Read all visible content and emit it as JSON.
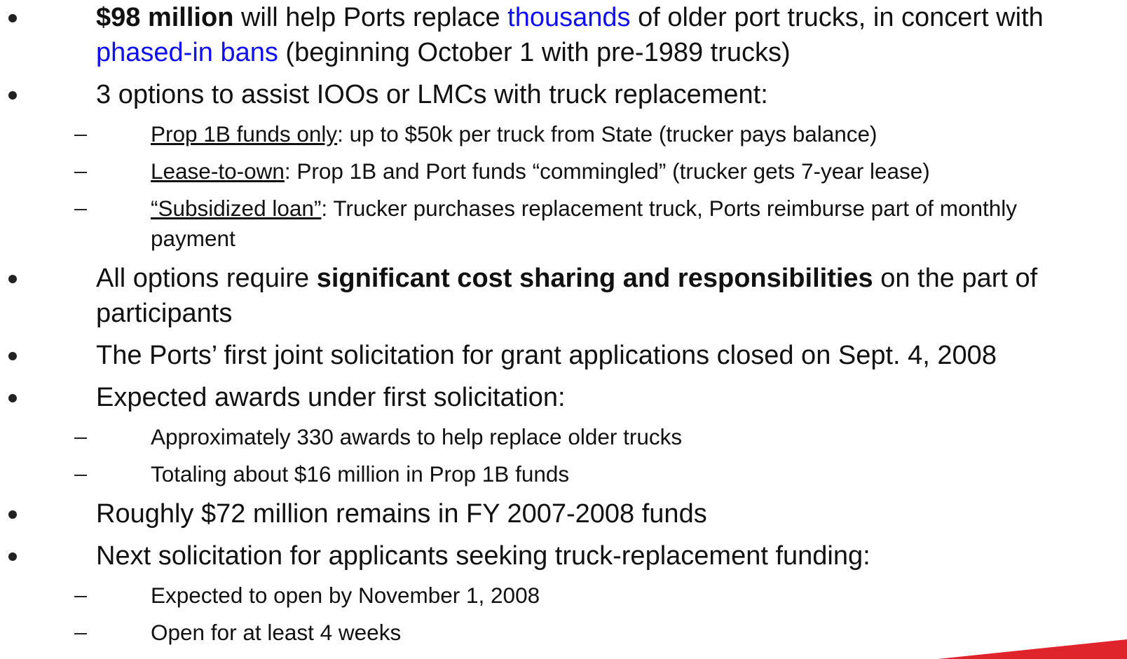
{
  "items": [
    {
      "level": 1,
      "runs": [
        {
          "text": "$98 million",
          "style": "bold"
        },
        {
          "text": " will help Ports replace "
        },
        {
          "text": "thousands",
          "style": "link"
        },
        {
          "text": " of older port trucks, in concert with "
        },
        {
          "text": "phased-in bans",
          "style": "link"
        },
        {
          "text": " (beginning October 1 with pre-1989 trucks)"
        }
      ]
    },
    {
      "level": 1,
      "runs": [
        {
          "text": "3 options to assist IOOs or LMCs with truck replacement:"
        }
      ]
    },
    {
      "level": 2,
      "runs": [
        {
          "text": "Prop 1B funds only",
          "style": "underline"
        },
        {
          "text": ": up to $50k per truck from State (trucker pays balance)"
        }
      ]
    },
    {
      "level": 2,
      "runs": [
        {
          "text": "Lease-to-own",
          "style": "underline"
        },
        {
          "text": ": Prop 1B and Port funds “commingled” (trucker gets 7-year lease)"
        }
      ]
    },
    {
      "level": 2,
      "runs": [
        {
          "text": "“Subsidized loan”",
          "style": "underline"
        },
        {
          "text": ": Trucker purchases replacement truck, Ports reimburse part of monthly payment"
        }
      ]
    },
    {
      "level": 1,
      "runs": [
        {
          "text": "All options require "
        },
        {
          "text": "significant cost sharing and responsibilities",
          "style": "bold"
        },
        {
          "text": " on the part of participants"
        }
      ]
    },
    {
      "level": 1,
      "runs": [
        {
          "text": "The Ports’ first joint solicitation for grant applications closed on Sept. 4, 2008"
        }
      ]
    },
    {
      "level": 1,
      "runs": [
        {
          "text": "Expected awards under first solicitation:"
        }
      ]
    },
    {
      "level": 2,
      "runs": [
        {
          "text": "Approximately 330 awards to help replace older trucks"
        }
      ]
    },
    {
      "level": 2,
      "runs": [
        {
          "text": "Totaling about $16 million in Prop 1B funds"
        }
      ]
    },
    {
      "level": 1,
      "runs": [
        {
          "text": "Roughly $72 million remains in FY 2007-2008 funds"
        }
      ]
    },
    {
      "level": 1,
      "runs": [
        {
          "text": "Next solicitation for applicants seeking truck-replacement funding:"
        }
      ]
    },
    {
      "level": 2,
      "runs": [
        {
          "text": "Expected to open by November 1, 2008"
        }
      ]
    },
    {
      "level": 2,
      "runs": [
        {
          "text": "Open for at least 4 weeks"
        }
      ]
    }
  ]
}
